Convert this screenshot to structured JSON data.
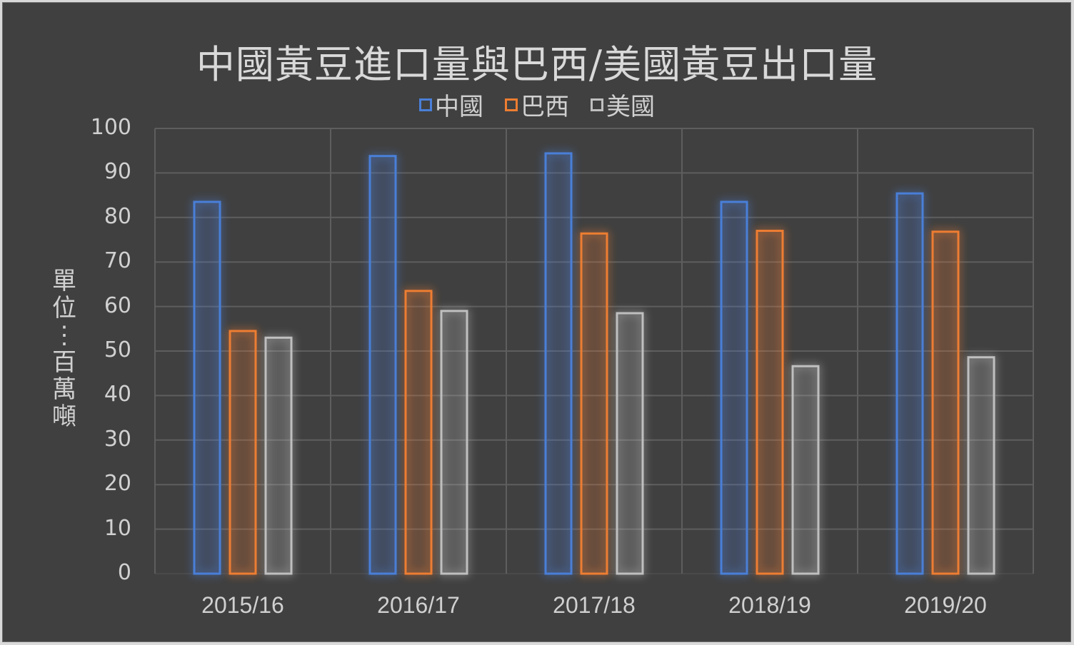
{
  "chart_data": {
    "type": "bar",
    "title": "中國黃豆進口量與巴西/美國黃豆出口量",
    "xlabel": "",
    "ylabel": "單位：百萬噸",
    "ylim": [
      0,
      100
    ],
    "yticks": [
      0,
      10,
      20,
      30,
      40,
      50,
      60,
      70,
      80,
      90,
      100
    ],
    "grid": true,
    "legend_position": "top",
    "categories": [
      "2015/16",
      "2016/17",
      "2017/18",
      "2018/19",
      "2019/20"
    ],
    "series": [
      {
        "name": "中國",
        "color": "#4a7fd8",
        "values": [
          83.5,
          93.8,
          94.4,
          83.5,
          85.4
        ]
      },
      {
        "name": "巴西",
        "color": "#ed7d31",
        "values": [
          54.5,
          63.5,
          76.4,
          77.0,
          76.8
        ]
      },
      {
        "name": "美國",
        "color": "#bfbfbf",
        "values": [
          53.0,
          59.0,
          58.5,
          46.6,
          48.6
        ]
      }
    ]
  },
  "legend": [
    {
      "label": "中國",
      "color": "#4a7fd8"
    },
    {
      "label": "巴西",
      "color": "#ed7d31"
    },
    {
      "label": "美國",
      "color": "#bfbfbf"
    }
  ],
  "ylabel_chars": "單位：百萬噸"
}
